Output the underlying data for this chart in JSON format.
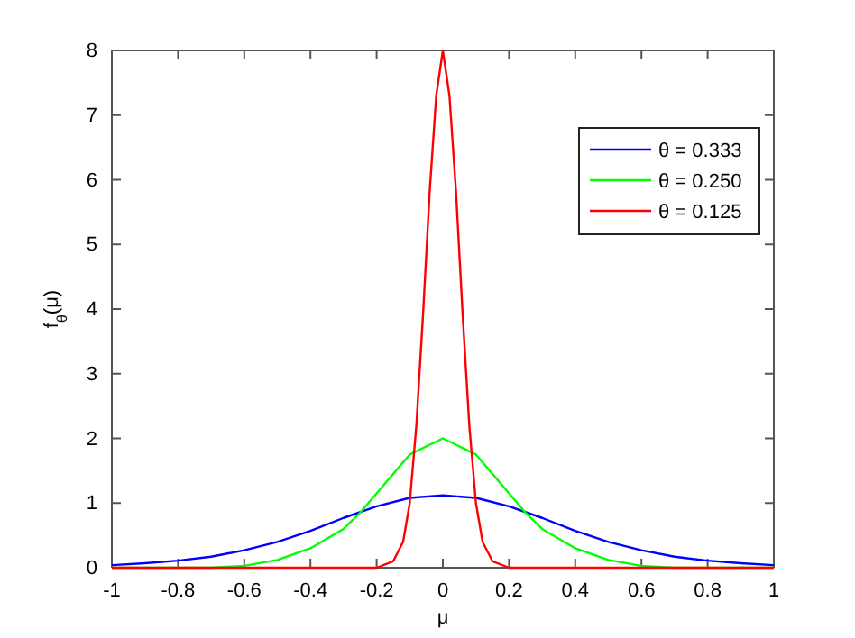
{
  "chart_data": {
    "type": "line",
    "xlabel": "μ",
    "ylabel": "f$_{θ}$(μ)",
    "xlim": [
      -1,
      1
    ],
    "xticks": [
      -1,
      -0.8,
      -0.6,
      -0.4,
      -0.2,
      0,
      0.2,
      0.4,
      0.6,
      0.8,
      1
    ],
    "ylim": [
      0,
      8
    ],
    "yticks": [
      0,
      1,
      2,
      3,
      4,
      5,
      6,
      7,
      8
    ],
    "legend": "top right",
    "grid": false,
    "series": [
      {
        "name": "θ = 0.333",
        "color": "#0000ff",
        "x": [
          -1,
          -0.9,
          -0.8,
          -0.7,
          -0.6,
          -0.5,
          -0.4,
          -0.3,
          -0.2,
          -0.1,
          0,
          0.1,
          0.2,
          0.3,
          0.4,
          0.5,
          0.6,
          0.7,
          0.8,
          0.9,
          1
        ],
        "values": [
          0.04,
          0.07,
          0.11,
          0.17,
          0.27,
          0.4,
          0.57,
          0.77,
          0.95,
          1.08,
          1.12,
          1.08,
          0.95,
          0.77,
          0.57,
          0.4,
          0.27,
          0.17,
          0.11,
          0.07,
          0.04
        ]
      },
      {
        "name": "θ = 0.250",
        "color": "#00ff00",
        "x": [
          -1,
          -0.7,
          -0.6,
          -0.5,
          -0.4,
          -0.3,
          -0.25,
          -0.2,
          -0.1,
          0,
          0.1,
          0.2,
          0.25,
          0.3,
          0.4,
          0.5,
          0.6,
          0.7,
          1
        ],
        "values": [
          0,
          0,
          0.03,
          0.12,
          0.3,
          0.6,
          0.85,
          1.15,
          1.75,
          2,
          1.75,
          1.15,
          0.85,
          0.6,
          0.3,
          0.12,
          0.03,
          0,
          0
        ]
      },
      {
        "name": "θ = 0.125",
        "color": "#ff0000",
        "x": [
          -1,
          -0.2,
          -0.15,
          -0.12,
          -0.1,
          -0.08,
          -0.06,
          -0.04,
          -0.02,
          0,
          0.02,
          0.04,
          0.06,
          0.08,
          0.1,
          0.12,
          0.15,
          0.2,
          1
        ],
        "values": [
          0,
          0,
          0.1,
          0.4,
          1.0,
          2.2,
          3.9,
          5.8,
          7.3,
          8,
          7.3,
          5.8,
          3.9,
          2.2,
          1.0,
          0.4,
          0.1,
          0,
          0
        ]
      }
    ]
  }
}
